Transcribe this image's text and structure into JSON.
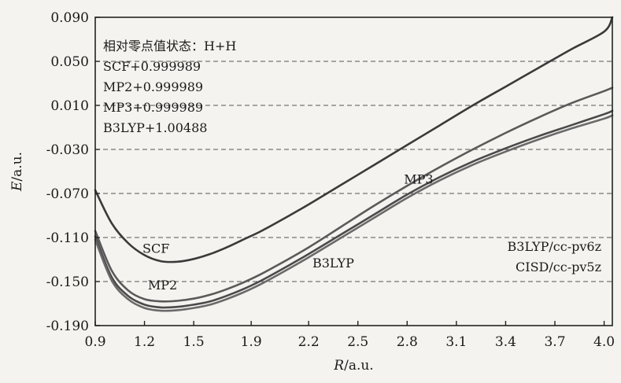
{
  "chart_data": {
    "type": "line",
    "xlabel": {
      "italic": "R",
      "rest": "/a.u."
    },
    "ylabel": {
      "italic": "E",
      "rest": "/a.u."
    },
    "xlim": [
      0.9,
      4.05
    ],
    "ylim": [
      -0.19,
      0.09
    ],
    "xticks": [
      "0.9",
      "1.2",
      "1.5",
      "1.9",
      "2.2",
      "2.5",
      "2.8",
      "3.1",
      "3.4",
      "3.7",
      "4.0"
    ],
    "xtick_values": [
      0.9,
      1.2,
      1.5,
      1.85,
      2.2,
      2.5,
      2.8,
      3.1,
      3.4,
      3.7,
      4.0
    ],
    "yticks": [
      "0.090",
      "0.050",
      "0.010",
      "-0.030",
      "-0.070",
      "-0.110",
      "-0.150",
      "-0.190"
    ],
    "ytick_values": [
      0.09,
      0.05,
      0.01,
      -0.03,
      -0.07,
      -0.11,
      -0.15,
      -0.19
    ],
    "grid": "horizontal-dashed",
    "annotations_topleft": [
      "相对零点值状态：H+H",
      "SCF+0.999989",
      "MP2+0.999989",
      "MP3+0.999989",
      "B3LYP+1.00488"
    ],
    "annotations_bottomright": [
      "B3LYP/cc-pv6z",
      "CISD/cc-pv5z"
    ],
    "series": [
      {
        "name": "SCF",
        "color": "#3a3a3a",
        "x": [
          0.9,
          1.0,
          1.1,
          1.2,
          1.3,
          1.4,
          1.5,
          1.6,
          1.7,
          1.8,
          1.9,
          2.0,
          2.2,
          2.4,
          2.6,
          2.8,
          3.0,
          3.2,
          3.4,
          3.6,
          3.8,
          4.0,
          4.05
        ],
        "y": [
          -0.067,
          -0.097,
          -0.115,
          -0.126,
          -0.1315,
          -0.132,
          -0.1295,
          -0.125,
          -0.119,
          -0.112,
          -0.105,
          -0.097,
          -0.08,
          -0.062,
          -0.044,
          -0.026,
          -0.008,
          0.01,
          0.027,
          0.044,
          0.061,
          0.077,
          0.09
        ]
      },
      {
        "name": "MP2",
        "color": "#5a5a5a",
        "x": [
          0.9,
          1.0,
          1.1,
          1.2,
          1.3,
          1.4,
          1.5,
          1.6,
          1.7,
          1.8,
          1.9,
          2.0,
          2.2,
          2.4,
          2.6,
          2.8,
          3.0,
          3.2,
          3.4,
          3.6,
          3.8,
          4.0,
          4.05
        ],
        "y": [
          -0.104,
          -0.14,
          -0.158,
          -0.166,
          -0.168,
          -0.1675,
          -0.1655,
          -0.162,
          -0.157,
          -0.151,
          -0.144,
          -0.136,
          -0.119,
          -0.1,
          -0.081,
          -0.063,
          -0.046,
          -0.03,
          -0.015,
          -0.001,
          0.012,
          0.023,
          0.026
        ]
      },
      {
        "name": "MP3",
        "color": "#4a4a4a",
        "x": [
          0.9,
          1.0,
          1.1,
          1.2,
          1.3,
          1.4,
          1.5,
          1.6,
          1.7,
          1.8,
          1.9,
          2.0,
          2.2,
          2.4,
          2.6,
          2.8,
          3.0,
          3.2,
          3.4,
          3.6,
          3.8,
          4.0,
          4.05
        ],
        "y": [
          -0.109,
          -0.146,
          -0.163,
          -0.171,
          -0.1735,
          -0.173,
          -0.171,
          -0.168,
          -0.163,
          -0.157,
          -0.15,
          -0.142,
          -0.125,
          -0.107,
          -0.089,
          -0.071,
          -0.055,
          -0.041,
          -0.029,
          -0.018,
          -0.008,
          0.002,
          0.005
        ]
      },
      {
        "name": "B3LYP",
        "color": "#6a6a6a",
        "x": [
          0.9,
          1.0,
          1.1,
          1.2,
          1.3,
          1.4,
          1.5,
          1.6,
          1.7,
          1.8,
          1.9,
          2.0,
          2.2,
          2.4,
          2.6,
          2.8,
          3.0,
          3.2,
          3.4,
          3.6,
          3.8,
          4.0,
          4.05
        ],
        "y": [
          -0.112,
          -0.149,
          -0.166,
          -0.174,
          -0.1765,
          -0.176,
          -0.174,
          -0.171,
          -0.166,
          -0.16,
          -0.153,
          -0.145,
          -0.128,
          -0.11,
          -0.092,
          -0.074,
          -0.058,
          -0.044,
          -0.032,
          -0.021,
          -0.011,
          -0.002,
          0.001
        ]
      }
    ],
    "series_labels": [
      {
        "text": "SCF",
        "x": 1.27,
        "y": -0.124
      },
      {
        "text": "MP2",
        "x": 1.31,
        "y": -0.157
      },
      {
        "text": "MP3",
        "x": 2.87,
        "y": -0.061
      },
      {
        "text": "B3LYP",
        "x": 2.35,
        "y": -0.137
      }
    ]
  }
}
